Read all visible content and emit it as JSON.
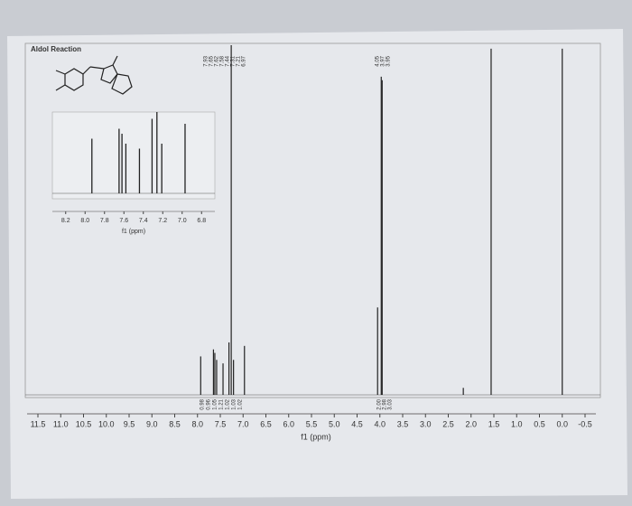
{
  "chart_data": {
    "type": "spectrum",
    "title": "Aldol Reaction",
    "x_label": "f1 (ppm)",
    "xlim": [
      11.5,
      -0.5
    ],
    "ylim": [
      0,
      1
    ],
    "xticks": [
      {
        "value": 11.5,
        "label": "11.5"
      },
      {
        "value": 11,
        "label": "11.0"
      },
      {
        "value": 10.5,
        "label": "10.5"
      },
      {
        "value": 10,
        "label": "10.0"
      },
      {
        "value": 9.5,
        "label": "9.5"
      },
      {
        "value": 9,
        "label": "9.0"
      },
      {
        "value": 8.5,
        "label": "8.5"
      },
      {
        "value": 8,
        "label": "8.0"
      },
      {
        "value": 7.5,
        "label": "7.5"
      },
      {
        "value": 7,
        "label": "7.0"
      },
      {
        "value": 6.5,
        "label": "6.5"
      },
      {
        "value": 6,
        "label": "6.0"
      },
      {
        "value": 5.5,
        "label": "5.5"
      },
      {
        "value": 5,
        "label": "5.0"
      },
      {
        "value": 4.5,
        "label": "4.5"
      },
      {
        "value": 4,
        "label": "4.0"
      },
      {
        "value": 3.5,
        "label": "3.5"
      },
      {
        "value": 3,
        "label": "3.0"
      },
      {
        "value": 2.5,
        "label": "2.5"
      },
      {
        "value": 2,
        "label": "2.0"
      },
      {
        "value": 1.5,
        "label": "1.5"
      },
      {
        "value": 1,
        "label": "1.0"
      },
      {
        "value": 0.5,
        "label": "0.5"
      },
      {
        "value": 0,
        "label": "0.0"
      },
      {
        "value": -0.5,
        "label": "-0.5"
      }
    ],
    "x": [
      7.93,
      7.65,
      7.62,
      7.58,
      7.44,
      7.31,
      7.26,
      7.21,
      6.97,
      4.05,
      3.97,
      3.95,
      2.17,
      1.56,
      0.0
    ],
    "values": [
      0.11,
      0.13,
      0.12,
      0.1,
      0.09,
      0.15,
      1.0,
      0.1,
      0.14,
      0.25,
      0.91,
      0.9,
      0.02,
      0.99,
      0.99
    ],
    "color": "#222",
    "peak_labels_aromatic": [
      "7.93",
      "7.65",
      "7.62",
      "7.58",
      "7.44",
      "7.31",
      "7.21",
      "6.97"
    ],
    "peak_labels_aliphatic": [
      "4.05",
      "3.97",
      "3.95"
    ],
    "integrals_aromatic": [
      "0.98",
      "0.96",
      "1.05",
      "1.21",
      "1.02",
      "1.03",
      "1.02"
    ],
    "integrals_aliphatic": [
      "2.00",
      "2.98",
      "3.03"
    ],
    "inset": {
      "xlim": [
        8.3,
        6.7
      ],
      "ylim": [
        0,
        0.16
      ],
      "x_label": "f1 (ppm)",
      "xticks": [
        {
          "value": 8.2,
          "label": "8.2"
        },
        {
          "value": 8,
          "label": "8.0"
        },
        {
          "value": 7.8,
          "label": "7.8"
        },
        {
          "value": 7.6,
          "label": "7.6"
        },
        {
          "value": 7.4,
          "label": "7.4"
        },
        {
          "value": 7.2,
          "label": "7.2"
        },
        {
          "value": 7,
          "label": "7.0"
        },
        {
          "value": 6.8,
          "label": "6.8"
        }
      ]
    }
  }
}
